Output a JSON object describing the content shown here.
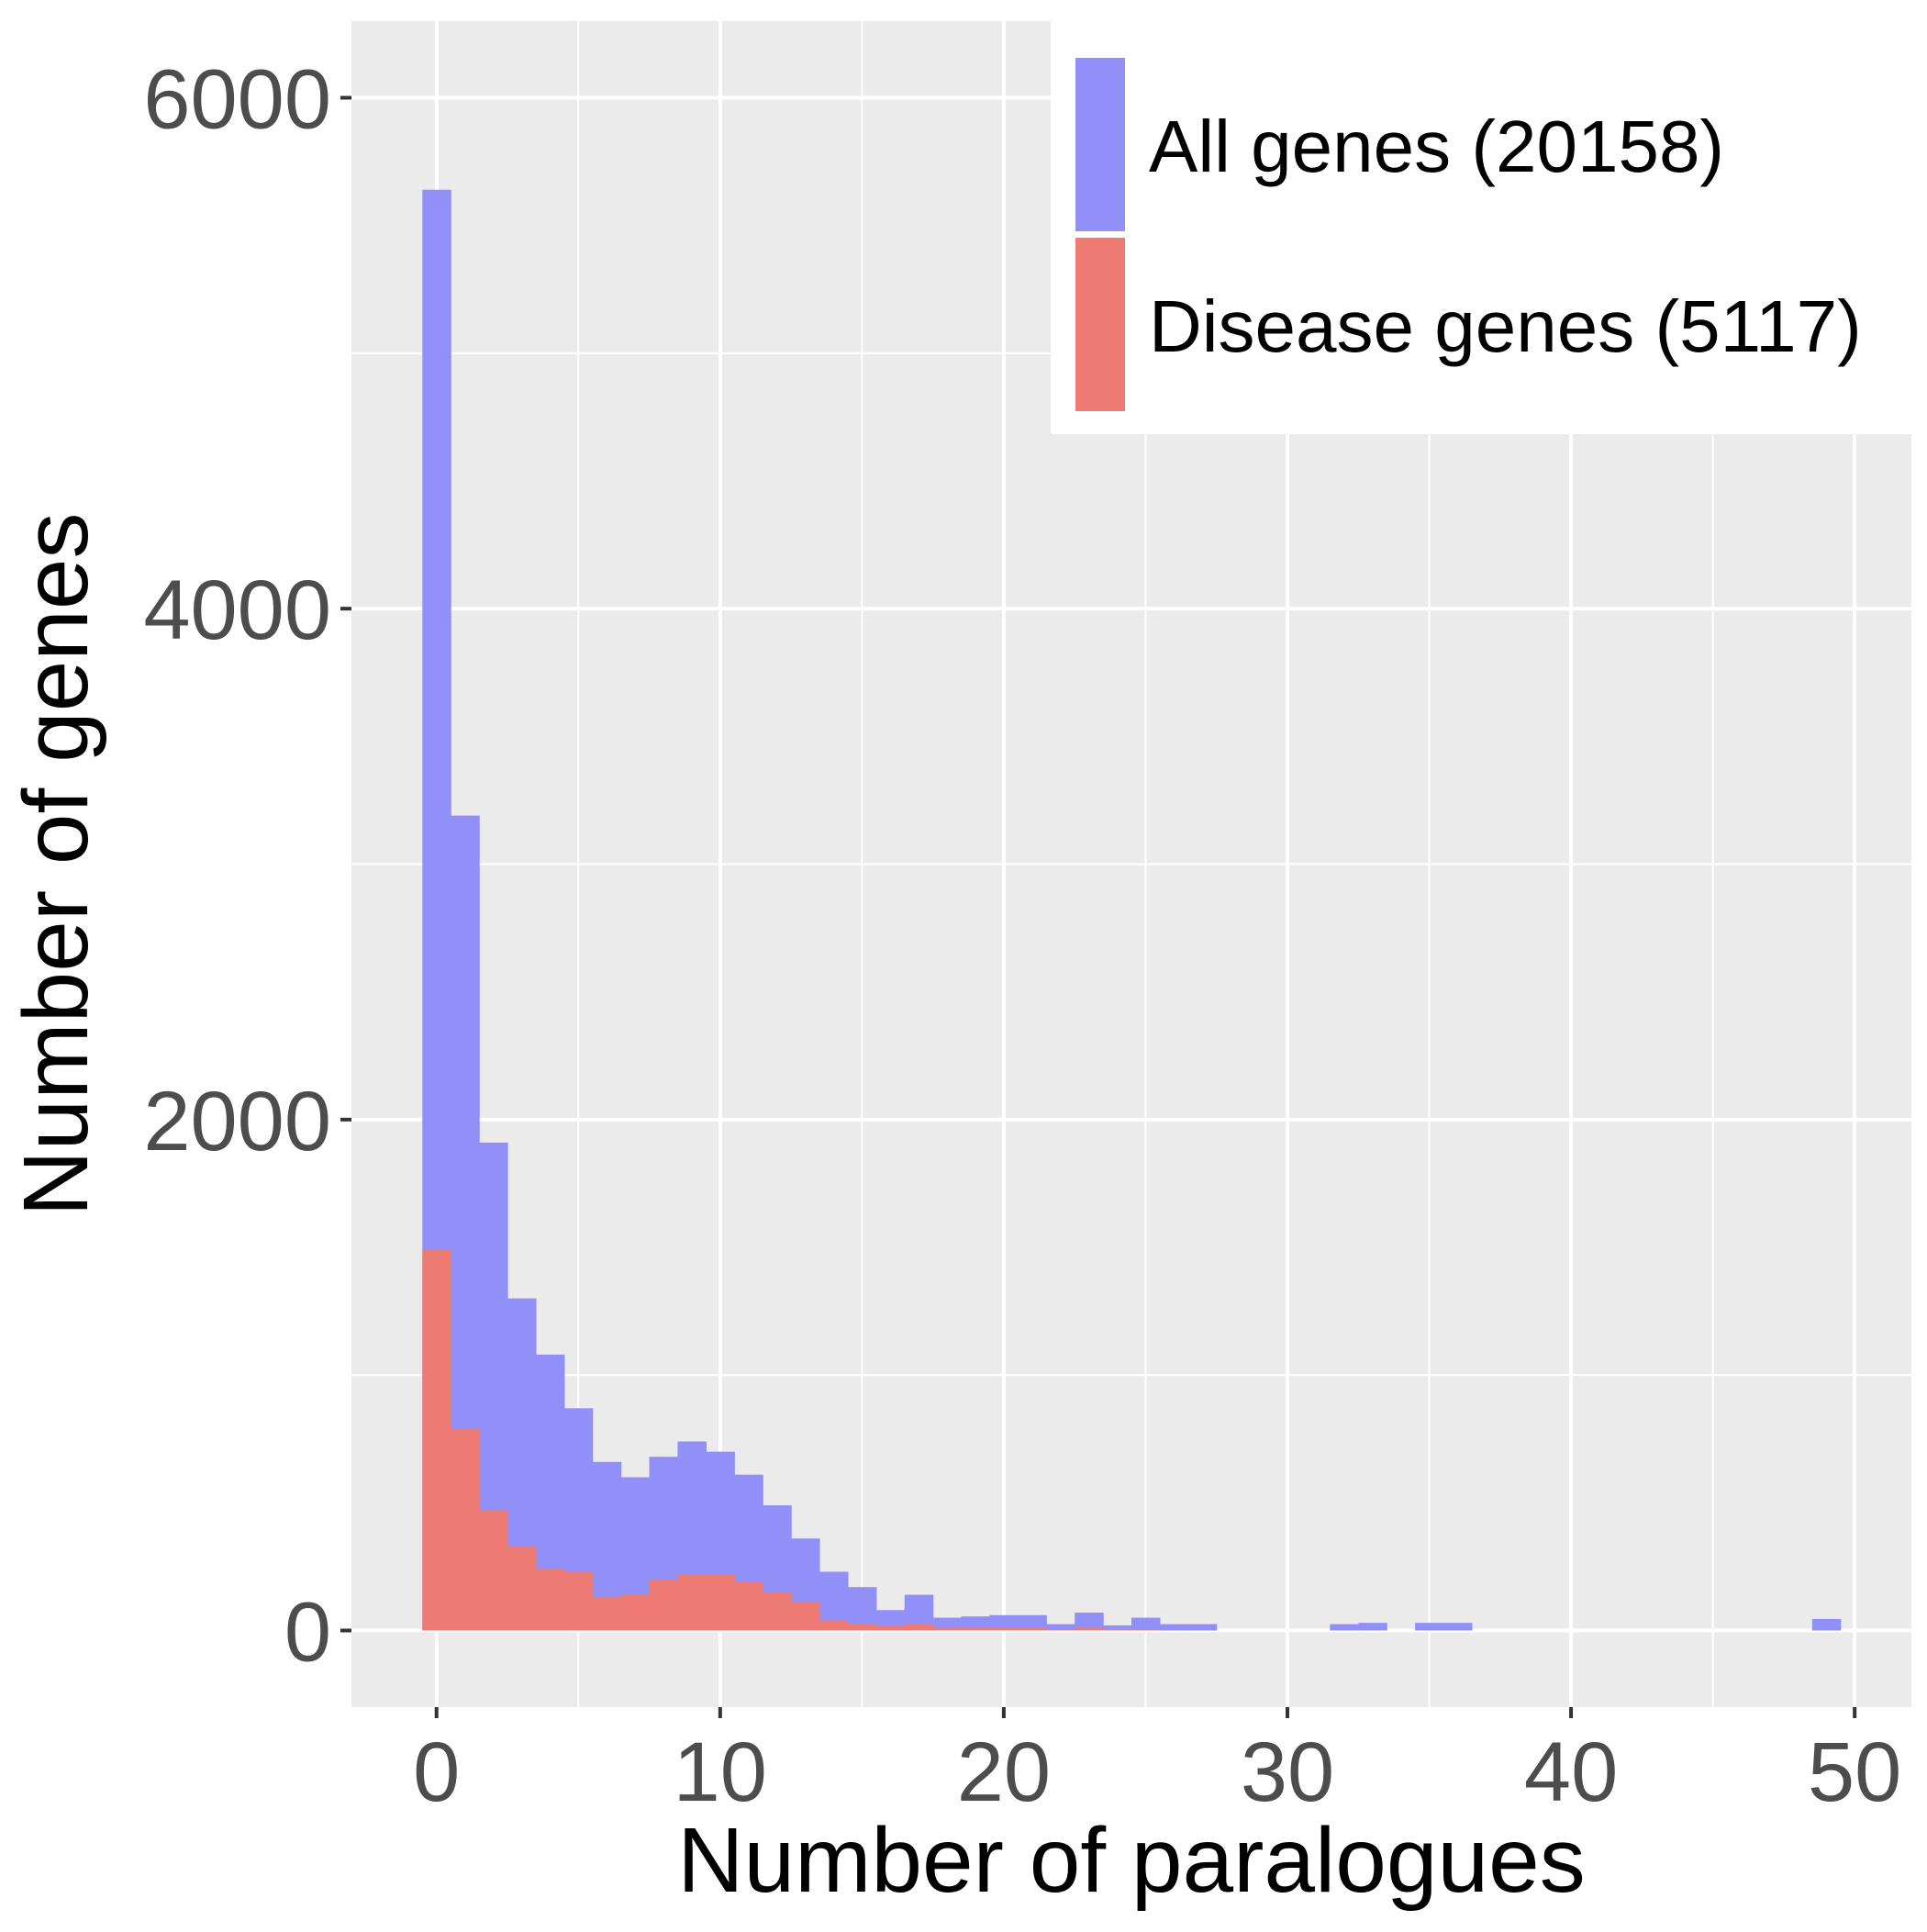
{
  "chart_data": {
    "type": "bar",
    "subtype": "overlaid histogram",
    "xlabel": "Number of paralogues",
    "ylabel": "Number of genes",
    "xlim": [
      -3,
      52
    ],
    "ylim": [
      -300,
      6300
    ],
    "x_ticks": [
      0,
      10,
      20,
      30,
      40,
      50
    ],
    "x_tick_labels": [
      "0",
      "10",
      "20",
      "30",
      "40",
      "50"
    ],
    "y_ticks": [
      0,
      2000,
      4000,
      6000
    ],
    "y_tick_labels": [
      "0",
      "2000",
      "4000",
      "6000"
    ],
    "grid": true,
    "legend_position": "top-right",
    "legend": [
      {
        "label": "All genes (20158)",
        "color": "#9090f8"
      },
      {
        "label": "Disease genes (5117)",
        "color": "#ed7b74"
      }
    ],
    "x": [
      0,
      1,
      2,
      3,
      4,
      5,
      6,
      7,
      8,
      9,
      10,
      11,
      12,
      13,
      14,
      15,
      16,
      17,
      18,
      19,
      20,
      21,
      22,
      23,
      24,
      25,
      26,
      27,
      28,
      29,
      30,
      31,
      32,
      33,
      34,
      35,
      36,
      37,
      38,
      39,
      40,
      41,
      42,
      43,
      44,
      45,
      46,
      47,
      48,
      49
    ],
    "series": [
      {
        "name": "All genes (20158)",
        "color": "#9090f8",
        "values": [
          5640,
          3190,
          1910,
          1300,
          1080,
          870,
          660,
          600,
          680,
          740,
          700,
          610,
          490,
          360,
          230,
          170,
          80,
          140,
          50,
          55,
          60,
          60,
          25,
          70,
          20,
          50,
          25,
          25,
          0,
          0,
          0,
          0,
          25,
          30,
          0,
          30,
          30,
          0,
          0,
          0,
          0,
          0,
          0,
          0,
          0,
          0,
          0,
          0,
          0,
          45
        ]
      },
      {
        "name": "Disease genes (5117)",
        "color": "#ed7b74",
        "values": [
          1490,
          790,
          470,
          330,
          240,
          230,
          130,
          140,
          200,
          220,
          220,
          190,
          150,
          110,
          40,
          25,
          20,
          25,
          10,
          10,
          12,
          10,
          5,
          10,
          5,
          5,
          0,
          0,
          0,
          0,
          0,
          0,
          0,
          0,
          0,
          0,
          0,
          0,
          0,
          0,
          0,
          0,
          0,
          0,
          0,
          0,
          0,
          0,
          0,
          0
        ]
      }
    ]
  }
}
